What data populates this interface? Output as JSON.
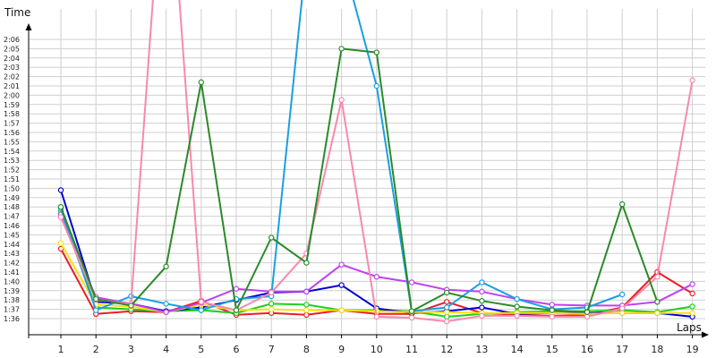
{
  "chart_data": {
    "type": "line",
    "xlabel": "Laps",
    "ylabel": "Time",
    "grid": true,
    "categories": [
      "1",
      "2",
      "3",
      "4",
      "5",
      "6",
      "7",
      "8",
      "9",
      "10",
      "11",
      "12",
      "13",
      "14",
      "15",
      "16",
      "17",
      "18",
      "19"
    ],
    "y_ticks": [
      "1:36",
      "1:37",
      "1:38",
      "1:39",
      "1:40",
      "1:41",
      "1:42",
      "1:43",
      "1:44",
      "1:45",
      "1:46",
      "1:47",
      "1:48",
      "1:49",
      "1:50",
      "1:51",
      "1:52",
      "1:53",
      "1:54",
      "1:55",
      "1:56",
      "1:57",
      "1:58",
      "1:59",
      "2:00",
      "2:01",
      "2:02",
      "2:03",
      "2:04",
      "2:05",
      "2:06"
    ],
    "ylim_seconds": [
      95,
      127.5
    ],
    "series": [
      {
        "color": "#ee1c25",
        "values_seconds": [
          103.5,
          96.5,
          96.8,
          96.7,
          97.9,
          96.4,
          96.6,
          96.4,
          96.9,
          96.5,
          96.5,
          97.8,
          96.6,
          96.4,
          96.3,
          96.4,
          97.2,
          101.0,
          98.7
        ]
      },
      {
        "color": "#1ed01e",
        "values_seconds": [
          107.5,
          97.2,
          97.0,
          96.8,
          96.9,
          96.6,
          97.6,
          97.5,
          96.9,
          96.9,
          96.8,
          96.2,
          96.5,
          96.7,
          96.8,
          96.8,
          96.9,
          96.7,
          97.3
        ]
      },
      {
        "color": "#0000d0",
        "values_seconds": [
          109.8,
          97.8,
          97.6,
          96.8,
          97.2,
          98.0,
          98.8,
          98.9,
          99.6,
          97.1,
          96.6,
          96.8,
          97.2,
          96.5,
          96.6,
          96.6,
          96.6,
          96.6,
          96.2
        ]
      },
      {
        "color": "#ffe010",
        "values_seconds": [
          104.1,
          97.5,
          97.3,
          96.7,
          97.5,
          96.9,
          97.0,
          96.9,
          96.9,
          96.8,
          96.7,
          96.7,
          96.6,
          96.6,
          96.6,
          96.5,
          96.6,
          96.6,
          96.6
        ]
      },
      {
        "color": "#c040f0",
        "values_seconds": [
          107.2,
          98.3,
          97.6,
          96.7,
          97.7,
          99.2,
          98.9,
          98.9,
          101.8,
          100.5,
          99.9,
          99.1,
          98.9,
          98.1,
          97.5,
          97.4,
          97.4,
          97.8,
          99.7
        ]
      },
      {
        "color": "#1aa0e0",
        "values_seconds": [
          107.8,
          96.9,
          98.4,
          97.6,
          96.9,
          98.1,
          98.4,
          135.0,
          135.0,
          121.0,
          96.8,
          97.2,
          99.9,
          98.1,
          97.0,
          97.2,
          98.6,
          null,
          null
        ]
      },
      {
        "color": "#f888b0",
        "values_seconds": [
          106.9,
          98.0,
          97.6,
          150.0,
          97.8,
          96.9,
          98.8,
          103.0,
          119.5,
          96.2,
          96.1,
          95.7,
          96.3,
          96.3,
          96.2,
          96.2,
          97.1,
          100.5,
          121.6
        ]
      },
      {
        "color": "#2a8a2a",
        "values_seconds": [
          108.0,
          98.1,
          97.4,
          101.6,
          121.4,
          96.9,
          104.7,
          102.0,
          125.0,
          124.6,
          96.8,
          98.8,
          97.9,
          97.3,
          96.9,
          96.7,
          108.3,
          97.8,
          null
        ]
      }
    ]
  }
}
